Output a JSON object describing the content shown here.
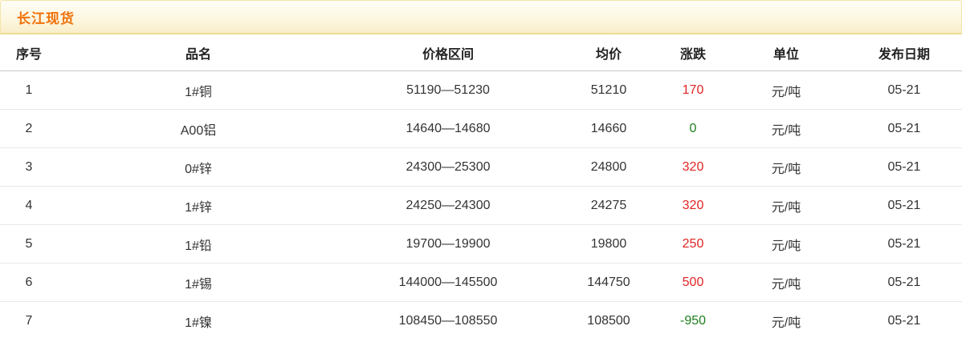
{
  "header": {
    "title": "长江现货"
  },
  "colors": {
    "up": "#e02424",
    "down_or_flat": "#1e7e1e",
    "title_orange": "#f0710a",
    "bar_border": "#f3e5a9"
  },
  "table": {
    "columns": [
      "序号",
      "品名",
      "价格区间",
      "均价",
      "涨跌",
      "单位",
      "发布日期"
    ],
    "rows": [
      {
        "no": "1",
        "name": "1#铜",
        "range": "51190—51230",
        "avg": "51210",
        "change": "170",
        "change_color": "#e02424",
        "unit": "元/吨",
        "date": "05-21"
      },
      {
        "no": "2",
        "name": "A00铝",
        "range": "14640—14680",
        "avg": "14660",
        "change": "0",
        "change_color": "#1e7e1e",
        "unit": "元/吨",
        "date": "05-21"
      },
      {
        "no": "3",
        "name": "0#锌",
        "range": "24300—25300",
        "avg": "24800",
        "change": "320",
        "change_color": "#e02424",
        "unit": "元/吨",
        "date": "05-21"
      },
      {
        "no": "4",
        "name": "1#锌",
        "range": "24250—24300",
        "avg": "24275",
        "change": "320",
        "change_color": "#e02424",
        "unit": "元/吨",
        "date": "05-21"
      },
      {
        "no": "5",
        "name": "1#铅",
        "range": "19700—19900",
        "avg": "19800",
        "change": "250",
        "change_color": "#e02424",
        "unit": "元/吨",
        "date": "05-21"
      },
      {
        "no": "6",
        "name": "1#锡",
        "range": "144000—145500",
        "avg": "144750",
        "change": "500",
        "change_color": "#e02424",
        "unit": "元/吨",
        "date": "05-21"
      },
      {
        "no": "7",
        "name": "1#镍",
        "range": "108450—108550",
        "avg": "108500",
        "change": "-950",
        "change_color": "#1e7e1e",
        "unit": "元/吨",
        "date": "05-21"
      }
    ]
  }
}
